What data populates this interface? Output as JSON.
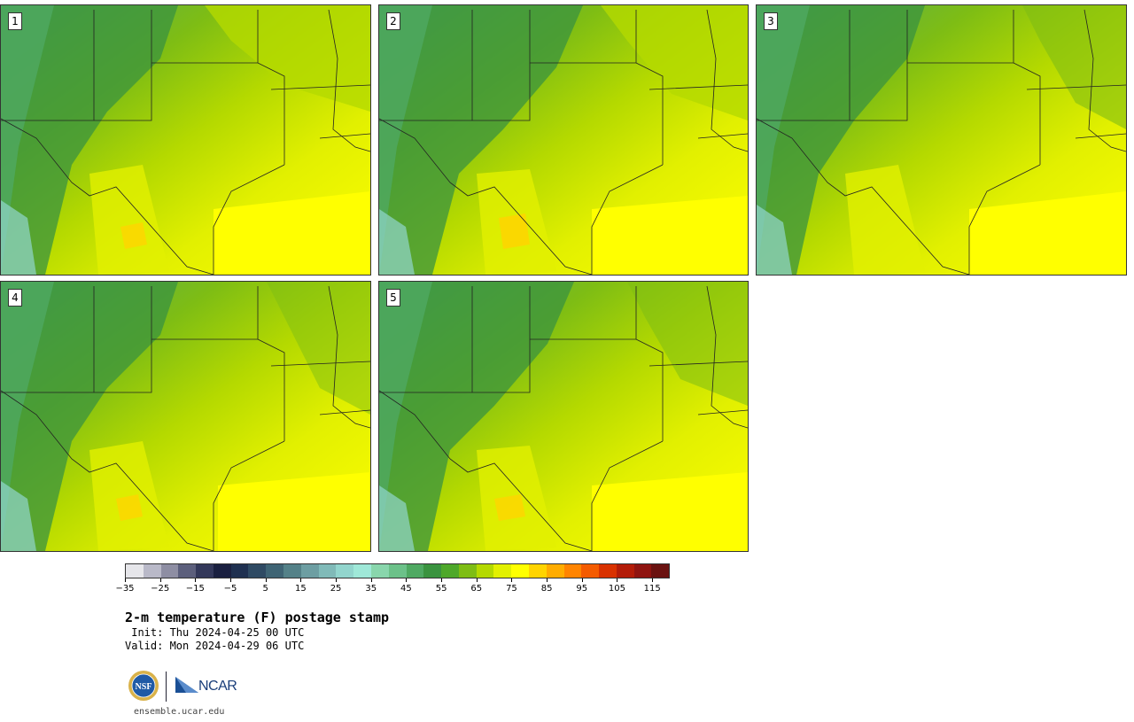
{
  "panels": [
    {
      "label": "1"
    },
    {
      "label": "2"
    },
    {
      "label": "3"
    },
    {
      "label": "4"
    },
    {
      "label": "5"
    }
  ],
  "colorbar": {
    "colors": [
      "#e6e6ea",
      "#b9b9c8",
      "#8e8ea3",
      "#5c5f7c",
      "#33385a",
      "#1a2040",
      "#1f3050",
      "#2f4a63",
      "#3f6474",
      "#548188",
      "#6d9ea2",
      "#80bab8",
      "#92d5cd",
      "#9fe8d8",
      "#89d6ac",
      "#6cc189",
      "#4fa962",
      "#3a933f",
      "#4ea82a",
      "#7ebd14",
      "#b4d900",
      "#e2f000",
      "#ffff00",
      "#ffd400",
      "#ffac00",
      "#ff8400",
      "#f45b00",
      "#d93200",
      "#b31c08",
      "#8f1410",
      "#6a1210"
    ],
    "tick_labels": [
      "−35",
      "−25",
      "−15",
      "−5",
      "5",
      "15",
      "25",
      "35",
      "45",
      "55",
      "65",
      "75",
      "85",
      "95",
      "105",
      "115"
    ]
  },
  "title": "2-m temperature (F) postage stamp",
  "init": " Init: Thu 2024-04-25 00 UTC",
  "valid": "Valid: Mon 2024-04-29 06 UTC",
  "logos": {
    "nsf": "NSF",
    "ncar": "NCAR"
  },
  "site": "ensemble.ucar.edu"
}
